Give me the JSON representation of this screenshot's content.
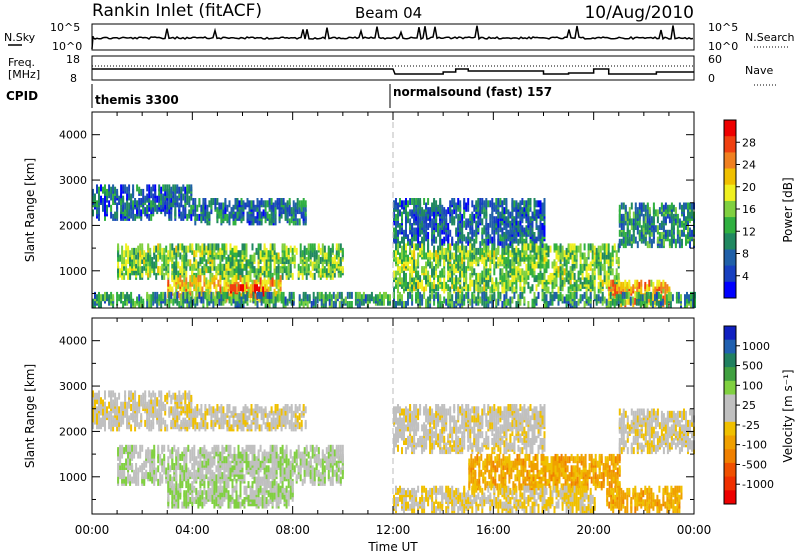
{
  "header": {
    "station": "Rankin Inlet (fitACF)",
    "beam": "Beam 04",
    "date": "10/Aug/2010"
  },
  "nsky_panel": {
    "left_label": "N.Sky",
    "right_label": "N.Search",
    "left_ticks": [
      "10^5",
      "10^0"
    ],
    "right_ticks": [
      "10^5",
      "10^0"
    ]
  },
  "freq_panel": {
    "left_label_line1": "Freq.",
    "left_label_line2": "[MHz]",
    "right_label": "Nave",
    "left_ticks": [
      "18",
      "8"
    ],
    "right_ticks": [
      "60",
      "0"
    ]
  },
  "cpid_panel": {
    "label": "CPID",
    "segments": [
      {
        "name": "themis 3300",
        "start_hour": 0
      },
      {
        "name": "normalsound (fast) 157",
        "start_hour": 12
      }
    ]
  },
  "x_axis": {
    "label": "Time UT",
    "ticks": [
      "00:00",
      "04:00",
      "08:00",
      "12:00",
      "16:00",
      "20:00",
      "00:00"
    ],
    "range_hours": [
      0,
      24
    ]
  },
  "chart_data": [
    {
      "type": "heatmap",
      "name": "power",
      "ylabel": "Slant Range [km]",
      "ylim": [
        180,
        4500
      ],
      "yticks": [
        1000,
        2000,
        3000,
        4000
      ],
      "colorbar_label": "Power [dB]",
      "colorbar_ticks": [
        "28",
        "24",
        "20",
        "16",
        "12",
        "8",
        "4"
      ],
      "colorbar_colors": [
        "#ee0000",
        "#f04010",
        "#f08020",
        "#f0c000",
        "#f0f020",
        "#80d040",
        "#30b040",
        "#208860",
        "#2060a8",
        "#1840c0",
        "#0000ff"
      ],
      "bands": [
        {
          "t0": 0.0,
          "t1": 4.0,
          "r0": 2100,
          "r1": 2800,
          "level": 6
        },
        {
          "t0": 4.0,
          "t1": 8.5,
          "r0": 2000,
          "r1": 2500,
          "level": 7
        },
        {
          "t0": 1.0,
          "t1": 10.0,
          "r0": 800,
          "r1": 1500,
          "level": 14
        },
        {
          "t0": 3.0,
          "t1": 7.5,
          "r0": 300,
          "r1": 800,
          "level": 20
        },
        {
          "t0": 5.5,
          "t1": 7.0,
          "r0": 300,
          "r1": 600,
          "level": 26
        },
        {
          "t0": 12.0,
          "t1": 18.0,
          "r0": 1500,
          "r1": 2500,
          "level": 6
        },
        {
          "t0": 12.0,
          "t1": 21.0,
          "r0": 500,
          "r1": 1500,
          "level": 14
        },
        {
          "t0": 20.5,
          "t1": 23.0,
          "r0": 200,
          "r1": 700,
          "level": 22
        },
        {
          "t0": 21.0,
          "t1": 24.0,
          "r0": 1500,
          "r1": 2400,
          "level": 9
        },
        {
          "t0": 0.0,
          "t1": 24.0,
          "r0": 180,
          "r1": 400,
          "level": 10
        }
      ]
    },
    {
      "type": "heatmap",
      "name": "velocity",
      "ylabel": "Slant Range [km]",
      "ylim": [
        180,
        4500
      ],
      "yticks": [
        1000,
        2000,
        3000,
        4000
      ],
      "colorbar_label": "Velocity [m s⁻¹]",
      "colorbar_ticks": [
        "1000",
        "500",
        "100",
        "25",
        "-25",
        "-100",
        "-500",
        "-1000"
      ],
      "colorbar_colors": [
        "#1020c0",
        "#2060b0",
        "#208060",
        "#40a040",
        "#80d040",
        "#c0c0c0",
        "#c0c0c0",
        "#f0c000",
        "#f0a000",
        "#f08000",
        "#f05000",
        "#f03000",
        "#ee0000"
      ],
      "bands": [
        {
          "t0": 0.0,
          "t1": 4.0,
          "r0": 2000,
          "r1": 2800,
          "level": 0
        },
        {
          "t0": 4.0,
          "t1": 8.5,
          "r0": 2000,
          "r1": 2500,
          "level": 0
        },
        {
          "t0": 1.0,
          "t1": 10.0,
          "r0": 800,
          "r1": 1600,
          "level": 200
        },
        {
          "t0": 3.0,
          "t1": 8.0,
          "r0": 300,
          "r1": 800,
          "level": 250
        },
        {
          "t0": 12.0,
          "t1": 18.0,
          "r0": 1500,
          "r1": 2500,
          "level": 0
        },
        {
          "t0": 15.0,
          "t1": 21.0,
          "r0": 700,
          "r1": 1400,
          "level": -300
        },
        {
          "t0": 12.0,
          "t1": 20.0,
          "r0": 200,
          "r1": 700,
          "level": -80
        },
        {
          "t0": 20.5,
          "t1": 23.5,
          "r0": 200,
          "r1": 700,
          "level": -300
        },
        {
          "t0": 21.0,
          "t1": 24.0,
          "r0": 1500,
          "r1": 2400,
          "level": 0
        }
      ]
    }
  ]
}
